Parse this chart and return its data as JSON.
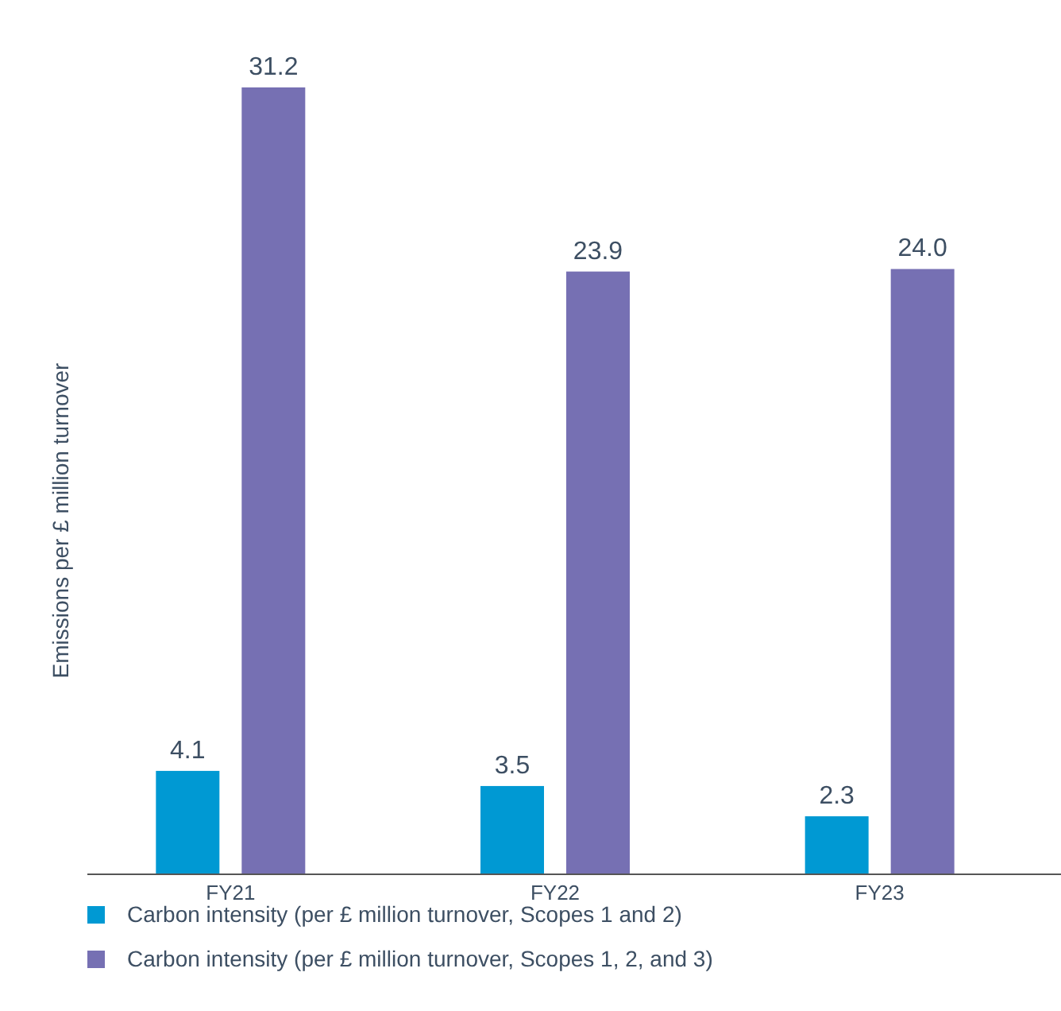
{
  "chart_data": {
    "type": "bar",
    "ylabel": "Emissions per £ million turnover",
    "categories": [
      "FY21",
      "FY22",
      "FY23"
    ],
    "series": [
      {
        "name": "Carbon intensity (per £ million turnover, Scopes 1 and 2)",
        "color": "#0099d3",
        "values": [
          4.1,
          3.5,
          2.3
        ],
        "value_labels": [
          "4.1",
          "3.5",
          "2.3"
        ]
      },
      {
        "name": "Carbon intensity (per £ million turnover, Scopes 1, 2, and 3)",
        "color": "#7670b3",
        "values": [
          31.2,
          23.9,
          24.0
        ],
        "value_labels": [
          "31.2",
          "23.9",
          "24.0"
        ]
      }
    ],
    "legend": "bottom"
  }
}
